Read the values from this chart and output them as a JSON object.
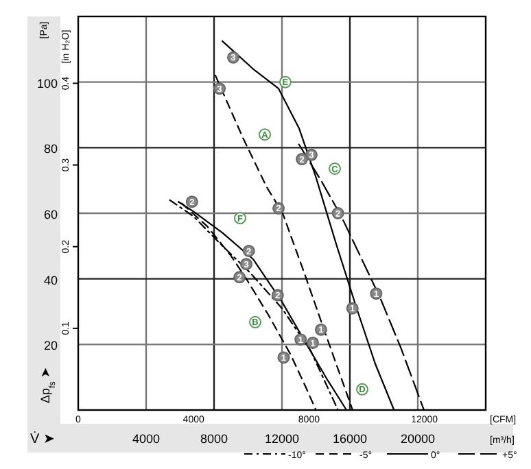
{
  "chart_data": {
    "type": "line",
    "ylabel": "Δp$_{fs}$ ➤",
    "xlabel": "V̇ ➤",
    "y2label": "[in H₂O]",
    "x2label": "[CFM]",
    "annotations": [
      "[Pa]",
      "[m³/h]",
      {
        "text": "3",
        "x": 8323,
        "y": 98
      },
      {
        "text": "2",
        "x": 11800,
        "y": 61.5
      },
      {
        "text": "1",
        "x": 14300,
        "y": 24.5
      },
      {
        "text": "3",
        "x": 9131,
        "y": 107.5
      },
      {
        "text": "2",
        "x": 13172,
        "y": 76.5
      },
      {
        "text": "1",
        "x": 16150,
        "y": 31
      },
      {
        "text": "3",
        "x": 13737,
        "y": 77.8
      },
      {
        "text": "2",
        "x": 15300,
        "y": 60
      },
      {
        "text": "1",
        "x": 17550,
        "y": 35.5
      },
      {
        "text": "2",
        "x": 6700,
        "y": 63.5
      },
      {
        "text": "2",
        "x": 10050,
        "y": 48.5
      },
      {
        "text": "3",
        "x": 9900,
        "y": 44.5
      },
      {
        "text": "2",
        "x": 9500,
        "y": 40.5
      },
      {
        "text": "2",
        "x": 11750,
        "y": 35
      },
      {
        "text": "1",
        "x": 13100,
        "y": 21.5
      },
      {
        "text": "1",
        "x": 13818,
        "y": 20.5
      },
      {
        "text": "1",
        "x": 12100,
        "y": 16
      },
      {
        "text": "A",
        "x": 10990,
        "y": 84
      },
      {
        "text": "E",
        "x": 12200,
        "y": 100
      },
      {
        "text": "C",
        "x": 15111,
        "y": 73.6
      },
      {
        "text": "F",
        "x": 9535,
        "y": 58.5
      },
      {
        "text": "B",
        "x": 10424,
        "y": 26.8
      },
      {
        "text": "D",
        "x": 16727,
        "y": 6.3
      }
    ],
    "xlim": [
      0,
      24000
    ],
    "xticks": [
      4000,
      8000,
      12000,
      16000,
      20000
    ],
    "x2lim": [
      0,
      14126
    ],
    "x2ticks": [
      0,
      4000,
      8000,
      12000
    ],
    "ylim": [
      0,
      120
    ],
    "yticks": [
      20,
      40,
      60,
      80,
      100
    ],
    "y2lim": [
      0,
      0.4818
    ],
    "y2ticks": [
      0.1,
      0.2,
      0.3,
      0.4
    ],
    "grid": true,
    "legend": "bottom",
    "series": [
      {
        "name": "-5°",
        "color": "#000000",
        "line_style": "dashed",
        "x": [
          8081,
          9700,
          11100,
          12040,
          13300,
          14545,
          16160
        ],
        "values": [
          102,
          83,
          68,
          60,
          42,
          23.5,
          0
        ]
      },
      {
        "name": "0°",
        "color": "#000000",
        "line_style": "solid",
        "x": [
          8485,
          10300,
          11800,
          13000,
          14000,
          15200,
          16400,
          17500,
          18600
        ],
        "values": [
          112.5,
          104,
          98,
          86,
          71,
          50.5,
          31,
          14,
          0
        ]
      },
      {
        "name": "+5°",
        "color": "#000000",
        "line_style": "longdash",
        "x": [
          13000,
          14300,
          15500,
          16700,
          17800,
          19000,
          20360
        ],
        "values": [
          81,
          70,
          59,
          46,
          34,
          19,
          0
        ]
      },
      {
        "name": "-10°",
        "color": "#000000",
        "line_style": "dashdot",
        "x": [
          5400,
          6800,
          8500,
          10100,
          12000,
          13700,
          15300
        ],
        "values": [
          64,
          59,
          50,
          42,
          31,
          18,
          0
        ]
      },
      {
        "color": "#000000",
        "line_style": "dashed",
        "x": [
          6100,
          7600,
          9000,
          9900,
          11200,
          12500,
          13400,
          14000
        ],
        "values": [
          63,
          56,
          47,
          40,
          29,
          17,
          7,
          0
        ]
      },
      {
        "color": "#000000",
        "line_style": "solid",
        "x": [
          5900,
          6800,
          8500,
          10300,
          12000,
          13400,
          14700,
          15800
        ],
        "values": [
          63.5,
          60.5,
          54,
          46,
          33,
          20.5,
          9,
          0
        ]
      }
    ]
  }
}
